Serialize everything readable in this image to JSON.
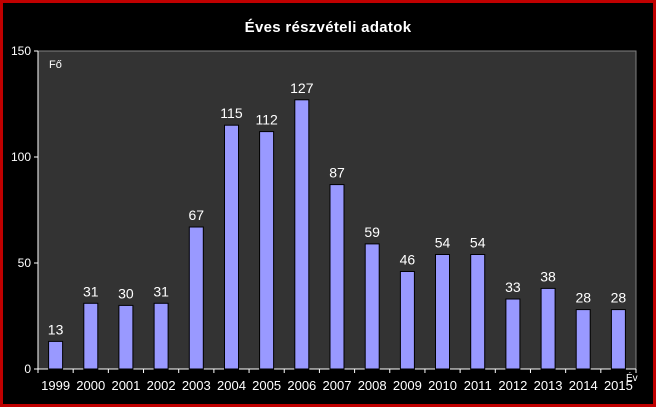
{
  "chart_data": {
    "type": "bar",
    "title": "Éves részvételi adatok",
    "ylabel": "Fő",
    "xlabel": "Év",
    "categories": [
      "1999",
      "2000",
      "2001",
      "2002",
      "2003",
      "2004",
      "2005",
      "2006",
      "2007",
      "2008",
      "2009",
      "2010",
      "2011",
      "2012",
      "2013",
      "2014",
      "2015"
    ],
    "values": [
      13,
      31,
      30,
      31,
      67,
      115,
      112,
      127,
      87,
      59,
      46,
      54,
      54,
      33,
      38,
      28,
      28
    ],
    "ylim": [
      0,
      150
    ],
    "yticks": [
      0,
      50,
      100,
      150
    ],
    "grid": false,
    "legend": "none",
    "colors": {
      "bar": "#9999ff",
      "bar_border": "#000000",
      "plot_background": "#333333",
      "page_background": "#000000",
      "frame_border": "#c00000",
      "text": "#ffffff"
    }
  }
}
